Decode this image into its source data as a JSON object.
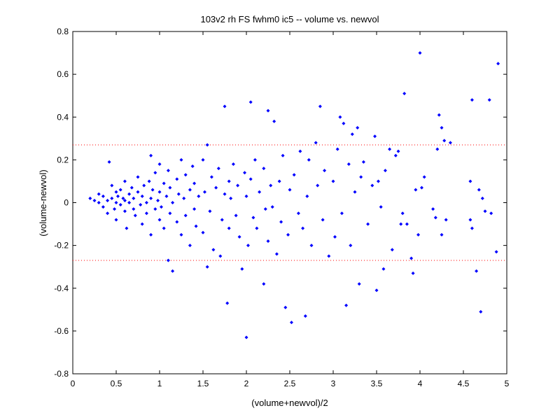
{
  "chart_data": {
    "type": "scatter",
    "title": "103v2 rh FS fwhm0 ic5 -- volume vs. newvol",
    "xlabel": "(volume+newvol)/2",
    "ylabel": "(volume-newvol)",
    "xlim": [
      0,
      5
    ],
    "ylim": [
      -0.8,
      0.8
    ],
    "xticks": [
      0,
      0.5,
      1,
      1.5,
      2,
      2.5,
      3,
      3.5,
      4,
      4.5,
      5
    ],
    "yticks": [
      -0.8,
      -0.6,
      -0.4,
      -0.2,
      0,
      0.2,
      0.4,
      0.6,
      0.8
    ],
    "xtick_labels": [
      "0",
      "0.5",
      "1",
      "1.5",
      "2",
      "2.5",
      "3",
      "3.5",
      "4",
      "4.5",
      "5"
    ],
    "ytick_labels": [
      "-0.8",
      "-0.6",
      "-0.4",
      "-0.2",
      "0",
      "0.2",
      "0.4",
      "0.6",
      "0.8"
    ],
    "grid": false,
    "legend": "none",
    "marker_color": "#0000ff",
    "reference_line_color": "#ff0000",
    "reference_lines_y": [
      0.27,
      -0.27
    ],
    "series": [
      {
        "points": [
          [
            0.2,
            0.02
          ],
          [
            0.25,
            0.01
          ],
          [
            0.3,
            0.0
          ],
          [
            0.3,
            0.04
          ],
          [
            0.35,
            -0.02
          ],
          [
            0.35,
            0.03
          ],
          [
            0.4,
            0.01
          ],
          [
            0.4,
            -0.05
          ],
          [
            0.42,
            0.19
          ],
          [
            0.45,
            0.02
          ],
          [
            0.45,
            0.08
          ],
          [
            0.48,
            -0.03
          ],
          [
            0.5,
            0.05
          ],
          [
            0.5,
            -0.08
          ],
          [
            0.5,
            0.0
          ],
          [
            0.52,
            0.03
          ],
          [
            0.55,
            -0.01
          ],
          [
            0.55,
            0.06
          ],
          [
            0.58,
            0.02
          ],
          [
            0.6,
            -0.04
          ],
          [
            0.6,
            0.1
          ],
          [
            0.6,
            0.01
          ],
          [
            0.62,
            -0.12
          ],
          [
            0.65,
            0.04
          ],
          [
            0.65,
            0.0
          ],
          [
            0.68,
            0.07
          ],
          [
            0.7,
            -0.03
          ],
          [
            0.7,
            0.02
          ],
          [
            0.72,
            -0.06
          ],
          [
            0.75,
            0.05
          ],
          [
            0.75,
            0.12
          ],
          [
            0.78,
            -0.01
          ],
          [
            0.8,
            0.03
          ],
          [
            0.8,
            -0.1
          ],
          [
            0.82,
            0.08
          ],
          [
            0.85,
            0.0
          ],
          [
            0.85,
            -0.05
          ],
          [
            0.88,
            0.1
          ],
          [
            0.9,
            0.22
          ],
          [
            0.9,
            -0.15
          ],
          [
            0.9,
            0.02
          ],
          [
            0.92,
            0.06
          ],
          [
            0.95,
            -0.03
          ],
          [
            0.95,
            0.14
          ],
          [
            0.98,
            0.01
          ],
          [
            1.0,
            -0.08
          ],
          [
            1.0,
            0.05
          ],
          [
            1.0,
            0.18
          ],
          [
            1.02,
            -0.02
          ],
          [
            1.05,
            0.09
          ],
          [
            1.05,
            -0.12
          ],
          [
            1.08,
            0.03
          ],
          [
            1.1,
            -0.27
          ],
          [
            1.1,
            0.15
          ],
          [
            1.12,
            -0.05
          ],
          [
            1.12,
            0.07
          ],
          [
            1.15,
            -0.32
          ],
          [
            1.15,
            0.0
          ],
          [
            1.2,
            0.11
          ],
          [
            1.2,
            -0.09
          ],
          [
            1.22,
            0.04
          ],
          [
            1.25,
            -0.15
          ],
          [
            1.25,
            0.2
          ],
          [
            1.28,
            0.02
          ],
          [
            1.3,
            -0.06
          ],
          [
            1.3,
            0.13
          ],
          [
            1.35,
            -0.2
          ],
          [
            1.35,
            0.06
          ],
          [
            1.38,
            0.17
          ],
          [
            1.4,
            -0.03
          ],
          [
            1.4,
            0.09
          ],
          [
            1.42,
            -0.11
          ],
          [
            1.45,
            0.03
          ],
          [
            1.5,
            0.2
          ],
          [
            1.5,
            -0.14
          ],
          [
            1.52,
            0.05
          ],
          [
            1.55,
            -0.3
          ],
          [
            1.55,
            0.27
          ],
          [
            1.58,
            -0.04
          ],
          [
            1.6,
            0.12
          ],
          [
            1.62,
            -0.22
          ],
          [
            1.65,
            0.07
          ],
          [
            1.68,
            0.16
          ],
          [
            1.7,
            -0.25
          ],
          [
            1.72,
            -0.08
          ],
          [
            1.75,
            0.45
          ],
          [
            1.75,
            0.04
          ],
          [
            1.78,
            -0.47
          ],
          [
            1.8,
            0.1
          ],
          [
            1.8,
            -0.12
          ],
          [
            1.82,
            0.02
          ],
          [
            1.85,
            0.18
          ],
          [
            1.88,
            -0.06
          ],
          [
            1.9,
            0.08
          ],
          [
            1.92,
            -0.16
          ],
          [
            1.95,
            -0.31
          ],
          [
            1.98,
            0.14
          ],
          [
            2.0,
            -0.63
          ],
          [
            2.0,
            0.03
          ],
          [
            2.02,
            -0.2
          ],
          [
            2.05,
            0.47
          ],
          [
            2.05,
            0.11
          ],
          [
            2.08,
            -0.07
          ],
          [
            2.1,
            0.2
          ],
          [
            2.12,
            -0.12
          ],
          [
            2.15,
            0.05
          ],
          [
            2.2,
            -0.38
          ],
          [
            2.2,
            0.16
          ],
          [
            2.22,
            -0.03
          ],
          [
            2.25,
            0.43
          ],
          [
            2.25,
            -0.18
          ],
          [
            2.28,
            0.08
          ],
          [
            2.3,
            -0.02
          ],
          [
            2.32,
            0.38
          ],
          [
            2.35,
            -0.24
          ],
          [
            2.38,
            0.1
          ],
          [
            2.4,
            -0.09
          ],
          [
            2.42,
            0.22
          ],
          [
            2.45,
            -0.49
          ],
          [
            2.48,
            -0.15
          ],
          [
            2.5,
            0.06
          ],
          [
            2.52,
            -0.56
          ],
          [
            2.55,
            0.13
          ],
          [
            2.6,
            -0.05
          ],
          [
            2.62,
            0.24
          ],
          [
            2.65,
            -0.12
          ],
          [
            2.68,
            -0.53
          ],
          [
            2.7,
            0.03
          ],
          [
            2.72,
            0.2
          ],
          [
            2.75,
            -0.2
          ],
          [
            2.8,
            0.28
          ],
          [
            2.82,
            0.08
          ],
          [
            2.85,
            0.45
          ],
          [
            2.88,
            -0.08
          ],
          [
            2.9,
            0.15
          ],
          [
            2.95,
            -0.25
          ],
          [
            3.0,
            0.1
          ],
          [
            3.02,
            -0.16
          ],
          [
            3.05,
            0.25
          ],
          [
            3.08,
            0.4
          ],
          [
            3.1,
            -0.05
          ],
          [
            3.12,
            0.37
          ],
          [
            3.15,
            -0.48
          ],
          [
            3.18,
            0.18
          ],
          [
            3.2,
            -0.2
          ],
          [
            3.22,
            0.32
          ],
          [
            3.25,
            0.05
          ],
          [
            3.28,
            0.35
          ],
          [
            3.3,
            -0.38
          ],
          [
            3.32,
            0.12
          ],
          [
            3.35,
            0.19
          ],
          [
            3.4,
            -0.1
          ],
          [
            3.45,
            0.08
          ],
          [
            3.48,
            0.31
          ],
          [
            3.5,
            -0.41
          ],
          [
            3.52,
            0.1
          ],
          [
            3.55,
            -0.02
          ],
          [
            3.58,
            -0.31
          ],
          [
            3.6,
            0.15
          ],
          [
            3.65,
            0.25
          ],
          [
            3.68,
            -0.22
          ],
          [
            3.72,
            0.22
          ],
          [
            3.75,
            0.24
          ],
          [
            3.78,
            -0.1
          ],
          [
            3.8,
            -0.05
          ],
          [
            3.82,
            0.51
          ],
          [
            3.85,
            -0.1
          ],
          [
            3.9,
            -0.26
          ],
          [
            3.92,
            -0.33
          ],
          [
            3.95,
            0.06
          ],
          [
            3.98,
            -0.15
          ],
          [
            4.0,
            0.7
          ],
          [
            4.02,
            0.07
          ],
          [
            4.05,
            0.12
          ],
          [
            4.15,
            -0.03
          ],
          [
            4.18,
            -0.07
          ],
          [
            4.2,
            0.25
          ],
          [
            4.22,
            0.41
          ],
          [
            4.25,
            0.35
          ],
          [
            4.25,
            -0.15
          ],
          [
            4.28,
            0.29
          ],
          [
            4.3,
            -0.08
          ],
          [
            4.35,
            0.28
          ],
          [
            4.58,
            0.1
          ],
          [
            4.58,
            -0.08
          ],
          [
            4.6,
            0.48
          ],
          [
            4.6,
            -0.12
          ],
          [
            4.65,
            -0.32
          ],
          [
            4.68,
            0.06
          ],
          [
            4.7,
            -0.51
          ],
          [
            4.72,
            0.02
          ],
          [
            4.75,
            -0.04
          ],
          [
            4.8,
            0.48
          ],
          [
            4.82,
            -0.05
          ],
          [
            4.88,
            -0.23
          ],
          [
            4.9,
            0.65
          ]
        ]
      }
    ]
  }
}
